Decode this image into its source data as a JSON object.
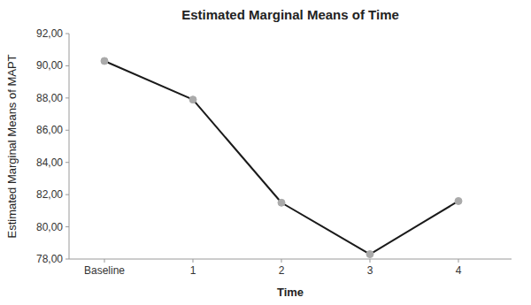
{
  "chart_data": {
    "type": "line",
    "title": "Estimated Marginal Means of Time",
    "xlabel": "Time",
    "ylabel": "Estimated Marginal Means of MAPT",
    "x": [
      0,
      1,
      2,
      3,
      4
    ],
    "values": [
      90.3,
      87.9,
      81.5,
      78.3,
      81.6
    ],
    "color": "#1a1a1a",
    "marker": "circle",
    "xlim": [
      -0.4,
      4.6
    ],
    "xticks": [
      {
        "value": 0,
        "label": "Baseline"
      },
      1,
      2,
      3,
      4
    ],
    "ylim": [
      78.0,
      92.0
    ],
    "yticks": [
      {
        "value": 78.0,
        "label": "78,00"
      },
      {
        "value": 80.0,
        "label": "80,00"
      },
      {
        "value": 82.0,
        "label": "82,00"
      },
      {
        "value": 84.0,
        "label": "84,00"
      },
      {
        "value": 86.0,
        "label": "86,00"
      },
      {
        "value": 88.0,
        "label": "88,00"
      },
      {
        "value": 90.0,
        "label": "90,00"
      },
      {
        "value": 92.0,
        "label": "92,00"
      }
    ],
    "grid": false
  }
}
